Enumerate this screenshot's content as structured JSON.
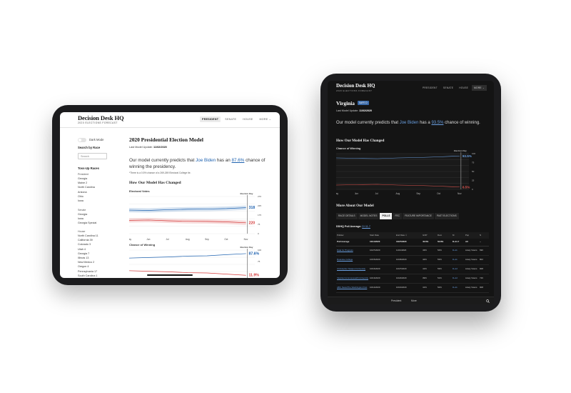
{
  "left": {
    "logo": "Decision Desk HQ",
    "logo_sub": "2020 ELECTIONS FORECAST",
    "nav": [
      "PRESIDENT",
      "SENATE",
      "HOUSE",
      "MORE ⌄"
    ],
    "dark_mode_label": "Dark Mode",
    "search_heading": "Search by Race",
    "search_placeholder": "Search",
    "tossup_heading": "Toss-Up Races",
    "groups": {
      "president": "President",
      "senate": "Senate",
      "house": "House"
    },
    "president_races": [
      "Georgia",
      "Maine 2",
      "North Carolina",
      "Arizona",
      "Ohio",
      "Iowa"
    ],
    "senate_races": [
      "Georgia",
      "Iowa",
      "Georgia Special"
    ],
    "house_races": [
      "North Carolina 11",
      "California 39",
      "Colorado 3",
      "Utah 4",
      "Georgia 7",
      "Illinois 13",
      "New Mexico 2",
      "Oregon 4",
      "Pennsylvania 17",
      "South Carolina 1",
      "Texas 7"
    ],
    "title": "2020 Presidential Election Model",
    "update_label": "Last Model Update:",
    "update_value": "11/02/2020",
    "pred_prefix": "Our model currently predicts that",
    "pred_candidate": "Joe Biden",
    "pred_mid": "has an",
    "pred_pct": "87.6%",
    "pred_suffix": "chance of winning the presidency.",
    "note": "*There is a 0.5% chance of a 269-269 Electoral College tie.",
    "section": "How Our Model Has Changed",
    "chart1_label": "Electoral Votes",
    "chart2_label": "Chance of Winning"
  },
  "right": {
    "logo": "Decision Desk HQ",
    "logo_sub": "2020 ELECTIONS FORECAST",
    "nav": [
      "PRESIDENT",
      "SENATE",
      "HOUSE",
      "MORE ⌄"
    ],
    "state": "Virginia",
    "badge": "SAFE D",
    "update_label": "Last Model Update:",
    "update_value": "11/02/2020",
    "pred_prefix": "Our model currently predicts that",
    "pred_candidate": "Joe Biden",
    "pred_mid": "has a",
    "pred_pct": "93.5%",
    "pred_suffix": "chance of winning.",
    "section1": "How Our Model Has Changed",
    "chart_label": "Chance of Winning",
    "section2": "More About Our Model",
    "tabs": [
      "RACE DETAILS",
      "MODEL NOTES",
      "POLLS",
      "FEC",
      "FEATURE IMPORTANCE",
      "PAST ELECTIONS"
    ],
    "active_tab": "POLLS",
    "avg_label": "DDHQ Poll Average:",
    "avg_value": "D+11.7",
    "columns": [
      "Pollster",
      "Start Date",
      "End Date ⇩",
      "GOP",
      "Dem",
      "M",
      "Pop",
      "N"
    ],
    "avg_row": [
      "Poll Average",
      "10/11/2020",
      "10/27/2020",
      "40.6%",
      "52.8%",
      "D+11.7",
      "All",
      "--"
    ],
    "rows": [
      [
        "Data for Progress",
        "10/27/2020",
        "11/01/2020",
        "43%",
        "54%",
        "D+11",
        "Likely Voters",
        "690"
      ],
      [
        "Roanoke College",
        "10/15/2020",
        "10/29/2020",
        "42%",
        "53%",
        "D+11",
        "Likely Voters",
        "802"
      ],
      [
        "Christopher Newport University",
        "10/16/2020",
        "10/27/2020",
        "41%",
        "53%",
        "D+12",
        "Likely Voters",
        "908"
      ],
      [
        "Virginia Commonwealth University",
        "10/13/2020",
        "10/22/2020",
        "39%",
        "51%",
        "D+12",
        "Likely Voters",
        "726"
      ],
      [
        "ABC News/The Washington Post",
        "10/12/2020",
        "10/16/2020",
        "41%",
        "52%",
        "D+11",
        "Likely Voters",
        "908"
      ]
    ],
    "bottom": [
      "President",
      "More"
    ]
  },
  "colors": {
    "dem": "#1e62b0",
    "gop": "#d43a3a",
    "dark_bg": "#141414"
  },
  "chart_data": [
    {
      "type": "area",
      "title": "Electoral Votes",
      "x": [
        "May",
        "Jun",
        "Jul",
        "Aug",
        "Sep",
        "Oct",
        "Nov"
      ],
      "series": [
        {
          "values": [
            302,
            300,
            305,
            308,
            309,
            312,
            318
          ]
        },
        {
          "values": [
            236,
            238,
            233,
            230,
            229,
            226,
            220
          ]
        }
      ],
      "y_ticks": [
        "270",
        "225",
        "175",
        "75",
        "0"
      ],
      "end_labels": [
        "318",
        "220"
      ],
      "annotation": "Election Day"
    },
    {
      "type": "line",
      "title": "Chance of Winning",
      "x": [
        "May",
        "Jun",
        "Jul",
        "Aug",
        "Sep",
        "Oct",
        "Nov"
      ],
      "series": [
        {
          "values": [
            72,
            74,
            76,
            79,
            80,
            84,
            87.6
          ]
        },
        {
          "values": [
            28,
            26,
            24,
            21,
            20,
            16,
            11.9
          ]
        }
      ],
      "y_ticks": [
        "100",
        "75"
      ],
      "end_labels": [
        "87.6%",
        "11.9%"
      ],
      "annotation": "Election Day"
    },
    {
      "type": "line",
      "title": "Chance of Winning",
      "x": [
        "May",
        "Jun",
        "Jul",
        "Aug",
        "Sep",
        "Oct",
        "Nov"
      ],
      "series": [
        {
          "values": [
            88,
            87,
            86,
            88,
            89,
            91,
            93.5
          ]
        },
        {
          "values": [
            12,
            13,
            14,
            12,
            11,
            9,
            6.5
          ]
        }
      ],
      "y_ticks": [
        "100",
        "75",
        "50",
        "25",
        "0"
      ],
      "end_labels": [
        "93.5%",
        "6.5%"
      ],
      "annotation": "Election Day"
    }
  ]
}
